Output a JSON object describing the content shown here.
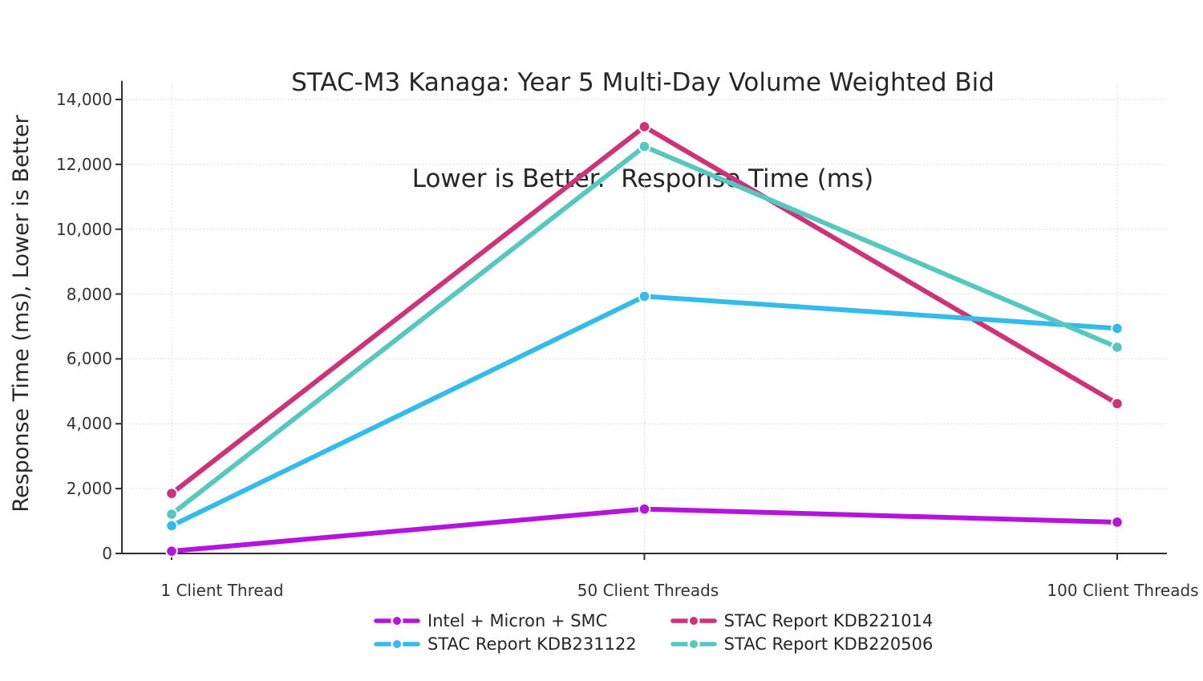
{
  "title": {
    "line1": "STAC-M3 Kanaga: Year 5 Multi-Day Volume Weighted Bid",
    "line2": "Lower is Better.  Response Time (ms)"
  },
  "y_axis": {
    "label": "Response Time (ms), Lower is Better",
    "tick_labels": [
      "0",
      "2,000",
      "4,000",
      "6,000",
      "8,000",
      "10,000",
      "12,000",
      "14,000"
    ],
    "tick_values": [
      0,
      2000,
      4000,
      6000,
      8000,
      10000,
      12000,
      14000
    ]
  },
  "x_axis": {
    "categories": [
      "1 Client Thread",
      "50 Client Threads",
      "100 Client Threads"
    ]
  },
  "legend": {
    "items": [
      "Intel + Micron + SMC",
      "STAC Report KDB221014",
      "STAC Report KDB231122",
      "STAC Report KDB220506"
    ]
  },
  "chart_data": {
    "type": "line",
    "title": "STAC-M3 Kanaga: Year 5 Multi-Day Volume Weighted Bid",
    "subtitle": "Lower is Better.  Response Time (ms)",
    "xlabel": "",
    "ylabel": "Response Time (ms), Lower is Better",
    "categories": [
      "1 Client Thread",
      "50 Client Threads",
      "100 Client Threads"
    ],
    "ylim": [
      0,
      14500
    ],
    "grid": true,
    "grid_style": "dotted",
    "legend_position": "bottom",
    "series": [
      {
        "name": "Intel + Micron + SMC",
        "color": "#b414dd",
        "values": [
          70,
          1370,
          965
        ]
      },
      {
        "name": "STAC Report KDB221014",
        "color": "#ce3277",
        "values": [
          1850,
          13160,
          4620
        ]
      },
      {
        "name": "STAC Report KDB231122",
        "color": "#33bbee",
        "values": [
          855,
          7930,
          6940
        ]
      },
      {
        "name": "STAC Report KDB220506",
        "color": "#57c8bf",
        "values": [
          1210,
          12550,
          6360
        ]
      }
    ]
  },
  "colors": {
    "grid": "#dcdcdc",
    "axis": "#2f2f2f",
    "title_text": "#262626",
    "tick_text": "#333333"
  }
}
